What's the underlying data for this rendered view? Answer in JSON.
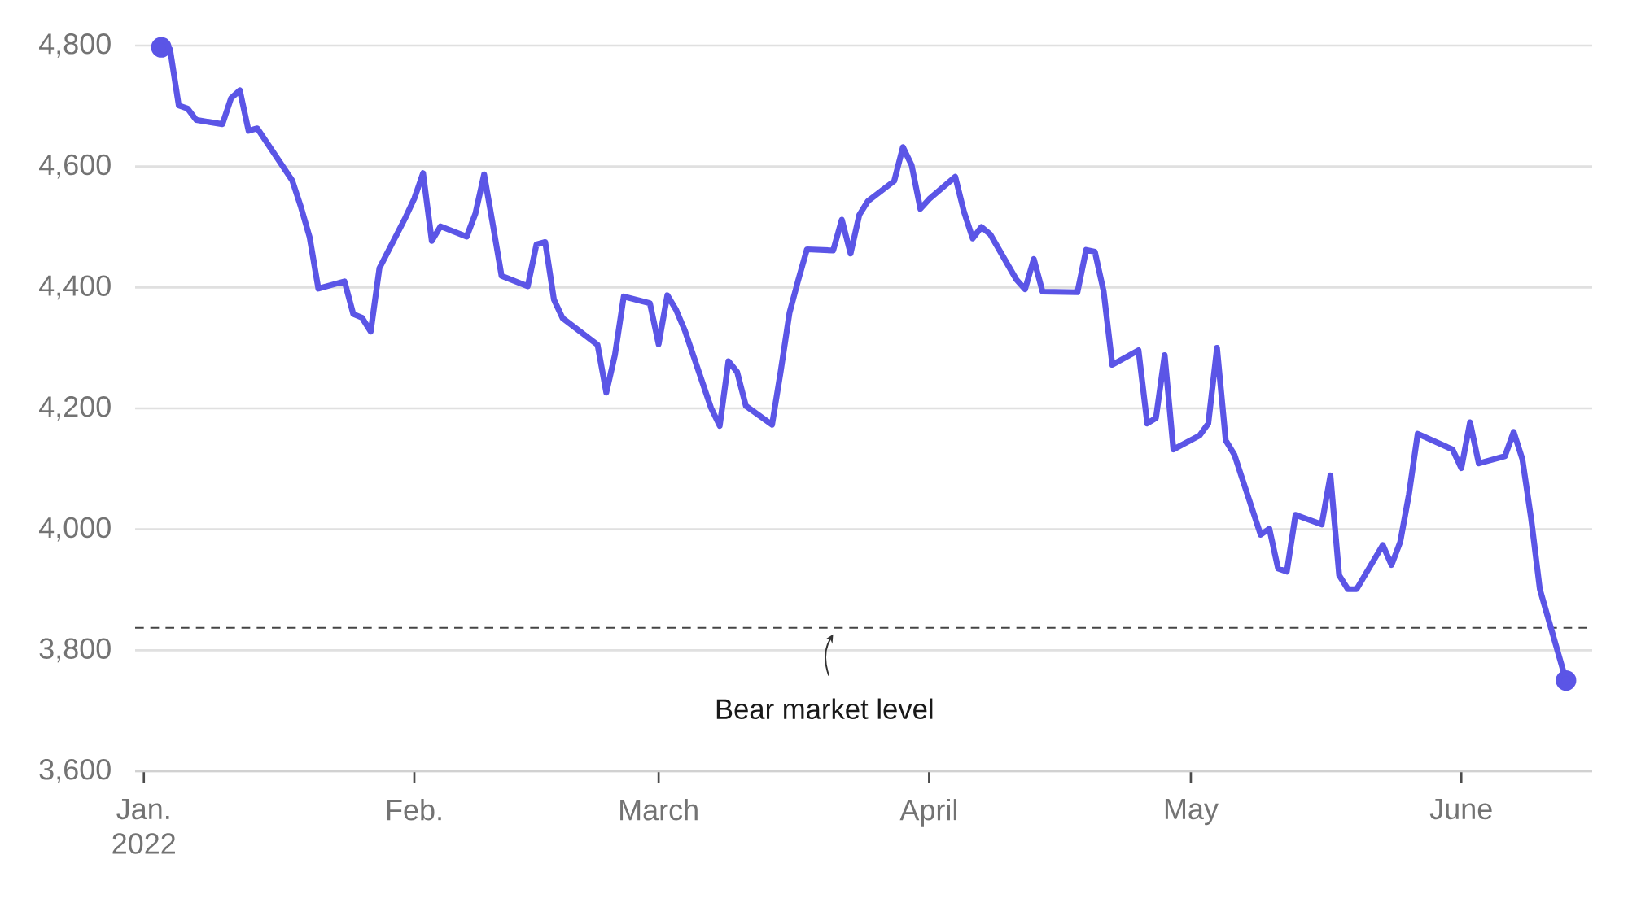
{
  "chart_data": {
    "type": "line",
    "x": [
      "2022-01-03",
      "2022-01-04",
      "2022-01-05",
      "2022-01-06",
      "2022-01-07",
      "2022-01-10",
      "2022-01-11",
      "2022-01-12",
      "2022-01-13",
      "2022-01-14",
      "2022-01-18",
      "2022-01-19",
      "2022-01-20",
      "2022-01-21",
      "2022-01-24",
      "2022-01-25",
      "2022-01-26",
      "2022-01-27",
      "2022-01-28",
      "2022-01-31",
      "2022-02-01",
      "2022-02-02",
      "2022-02-03",
      "2022-02-04",
      "2022-02-07",
      "2022-02-08",
      "2022-02-09",
      "2022-02-10",
      "2022-02-11",
      "2022-02-14",
      "2022-02-15",
      "2022-02-16",
      "2022-02-17",
      "2022-02-18",
      "2022-02-22",
      "2022-02-23",
      "2022-02-24",
      "2022-02-25",
      "2022-02-28",
      "2022-03-01",
      "2022-03-02",
      "2022-03-03",
      "2022-03-04",
      "2022-03-07",
      "2022-03-08",
      "2022-03-09",
      "2022-03-10",
      "2022-03-11",
      "2022-03-14",
      "2022-03-15",
      "2022-03-16",
      "2022-03-17",
      "2022-03-18",
      "2022-03-21",
      "2022-03-22",
      "2022-03-23",
      "2022-03-24",
      "2022-03-25",
      "2022-03-28",
      "2022-03-29",
      "2022-03-30",
      "2022-03-31",
      "2022-04-01",
      "2022-04-04",
      "2022-04-05",
      "2022-04-06",
      "2022-04-07",
      "2022-04-08",
      "2022-04-11",
      "2022-04-12",
      "2022-04-13",
      "2022-04-14",
      "2022-04-18",
      "2022-04-19",
      "2022-04-20",
      "2022-04-21",
      "2022-04-22",
      "2022-04-25",
      "2022-04-26",
      "2022-04-27",
      "2022-04-28",
      "2022-04-29",
      "2022-05-02",
      "2022-05-03",
      "2022-05-04",
      "2022-05-05",
      "2022-05-06",
      "2022-05-09",
      "2022-05-10",
      "2022-05-11",
      "2022-05-12",
      "2022-05-13",
      "2022-05-16",
      "2022-05-17",
      "2022-05-18",
      "2022-05-19",
      "2022-05-20",
      "2022-05-23",
      "2022-05-24",
      "2022-05-25",
      "2022-05-26",
      "2022-05-27",
      "2022-05-31",
      "2022-06-01",
      "2022-06-02",
      "2022-06-03",
      "2022-06-06",
      "2022-06-07",
      "2022-06-08",
      "2022-06-09",
      "2022-06-10",
      "2022-06-13"
    ],
    "series": [
      {
        "color": "#5b55e6",
        "values": [
          4797,
          4794,
          4701,
          4696,
          4677,
          4670,
          4713,
          4726,
          4659,
          4663,
          4577,
          4533,
          4483,
          4398,
          4410,
          4356,
          4350,
          4327,
          4432,
          4516,
          4547,
          4589,
          4477,
          4501,
          4484,
          4522,
          4587,
          4504,
          4419,
          4402,
          4471,
          4475,
          4380,
          4349,
          4305,
          4226,
          4289,
          4385,
          4374,
          4306,
          4387,
          4363,
          4329,
          4201,
          4171,
          4278,
          4260,
          4204,
          4173,
          4262,
          4358,
          4412,
          4463,
          4461,
          4512,
          4456,
          4520,
          4543,
          4576,
          4632,
          4602,
          4530,
          4546,
          4583,
          4525,
          4481,
          4500,
          4488,
          4413,
          4397,
          4447,
          4393,
          4392,
          4462,
          4459,
          4394,
          4272,
          4296,
          4175,
          4184,
          4288,
          4132,
          4155,
          4175,
          4300,
          4147,
          4123,
          3991,
          4001,
          3935,
          3930,
          4024,
          4008,
          4089,
          3924,
          3901,
          3901,
          3974,
          3941,
          3979,
          4058,
          4158,
          4132,
          4101,
          4177,
          4109,
          4121,
          4161,
          4116,
          4018,
          3901,
          3750
        ]
      }
    ],
    "xlim": [
      "2021-12-31",
      "2022-06-16"
    ],
    "xticks": [
      {
        "value": "2022-01-01",
        "label": "Jan. 2022"
      },
      {
        "value": "2022-02-01",
        "label": "Feb."
      },
      {
        "value": "2022-03-01",
        "label": "March"
      },
      {
        "value": "2022-04-01",
        "label": "April"
      },
      {
        "value": "2022-05-01",
        "label": "May"
      },
      {
        "value": "2022-06-01",
        "label": "June"
      }
    ],
    "ylim": [
      3600,
      4800
    ],
    "yticks": [
      {
        "value": 3600,
        "label": "3,600"
      },
      {
        "value": 3800,
        "label": "3,800"
      },
      {
        "value": 4000,
        "label": "4,000"
      },
      {
        "value": 4200,
        "label": "4,200"
      },
      {
        "value": 4400,
        "label": "4,400"
      },
      {
        "value": 4600,
        "label": "4,600"
      },
      {
        "value": 4800,
        "label": "4,800"
      }
    ],
    "grid": "y",
    "ref_lines": [
      {
        "axis": "y",
        "value": 3837,
        "color": "#444444",
        "line_style": "dashed"
      }
    ],
    "annotations": [
      {
        "text": "Bear market level",
        "x": "2022-03-21",
        "y": 3837
      }
    ]
  }
}
